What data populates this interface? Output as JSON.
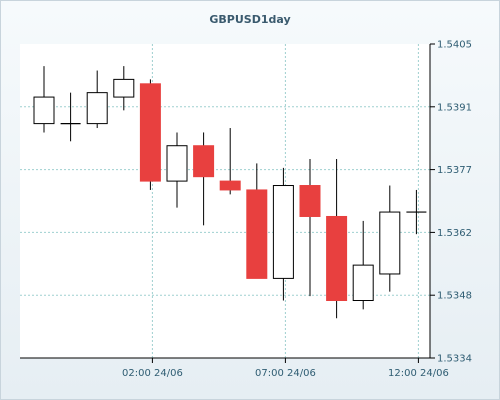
{
  "chart_data": {
    "type": "candlestick",
    "title": "GBPUSD1day",
    "ylim": [
      1.5334,
      1.5405
    ],
    "y_ticks": [
      "1.5405",
      "1.5391",
      "1.5377",
      "1.5362",
      "1.5348",
      "1.5334"
    ],
    "x_tick_labels": [
      "02:00 24/06",
      "07:00 24/06",
      "12:00 24/06"
    ],
    "grid": true,
    "colors": {
      "up": "#ffffff",
      "down": "#e8403f",
      "outline": "#000000",
      "grid": "#9fd0d0"
    },
    "candles": [
      {
        "open": 1.5387,
        "high": 1.54,
        "low": 1.5385,
        "close": 1.5393
      },
      {
        "open": 1.5387,
        "high": 1.5394,
        "low": 1.5383,
        "close": 1.5387
      },
      {
        "open": 1.5387,
        "high": 1.5399,
        "low": 1.5386,
        "close": 1.5394
      },
      {
        "open": 1.5393,
        "high": 1.54,
        "low": 1.539,
        "close": 1.5397
      },
      {
        "open": 1.5396,
        "high": 1.5397,
        "low": 1.5372,
        "close": 1.5374
      },
      {
        "open": 1.5374,
        "high": 1.5385,
        "low": 1.5368,
        "close": 1.5382
      },
      {
        "open": 1.5382,
        "high": 1.5385,
        "low": 1.5364,
        "close": 1.5375
      },
      {
        "open": 1.5374,
        "high": 1.5386,
        "low": 1.5371,
        "close": 1.5372
      },
      {
        "open": 1.5372,
        "high": 1.5378,
        "low": 1.5352,
        "close": 1.5352
      },
      {
        "open": 1.5352,
        "high": 1.5377,
        "low": 1.5347,
        "close": 1.5373
      },
      {
        "open": 1.5373,
        "high": 1.5379,
        "low": 1.5348,
        "close": 1.5366
      },
      {
        "open": 1.5366,
        "high": 1.5379,
        "low": 1.5343,
        "close": 1.5347
      },
      {
        "open": 1.5347,
        "high": 1.5365,
        "low": 1.5345,
        "close": 1.5355
      },
      {
        "open": 1.5353,
        "high": 1.5373,
        "low": 1.5349,
        "close": 1.5367
      },
      {
        "open": 1.5367,
        "high": 1.5372,
        "low": 1.5362,
        "close": 1.5367
      }
    ]
  }
}
